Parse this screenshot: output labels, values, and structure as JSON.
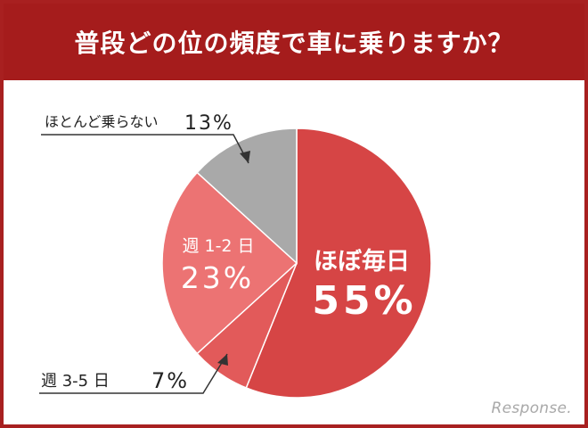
{
  "header": {
    "title": "普段どの位の頻度で車に乗りますか？"
  },
  "chart_data": {
    "type": "pie",
    "title": "普段どの位の頻度で車に乗りますか？",
    "slices": [
      {
        "label": "ほぼ毎日",
        "value": 55,
        "display": "55%",
        "color": "#d64545"
      },
      {
        "label": "週 3-5 日",
        "value": 7,
        "display": "7%",
        "color": "#e25a5a"
      },
      {
        "label": "週 1-2 日",
        "value": 23,
        "display": "23%",
        "color": "#ec7373"
      },
      {
        "label": "ほとんど乗らない",
        "value": 13,
        "display": "13%",
        "color": "#a9a9a9"
      }
    ]
  },
  "watermark": "Response."
}
